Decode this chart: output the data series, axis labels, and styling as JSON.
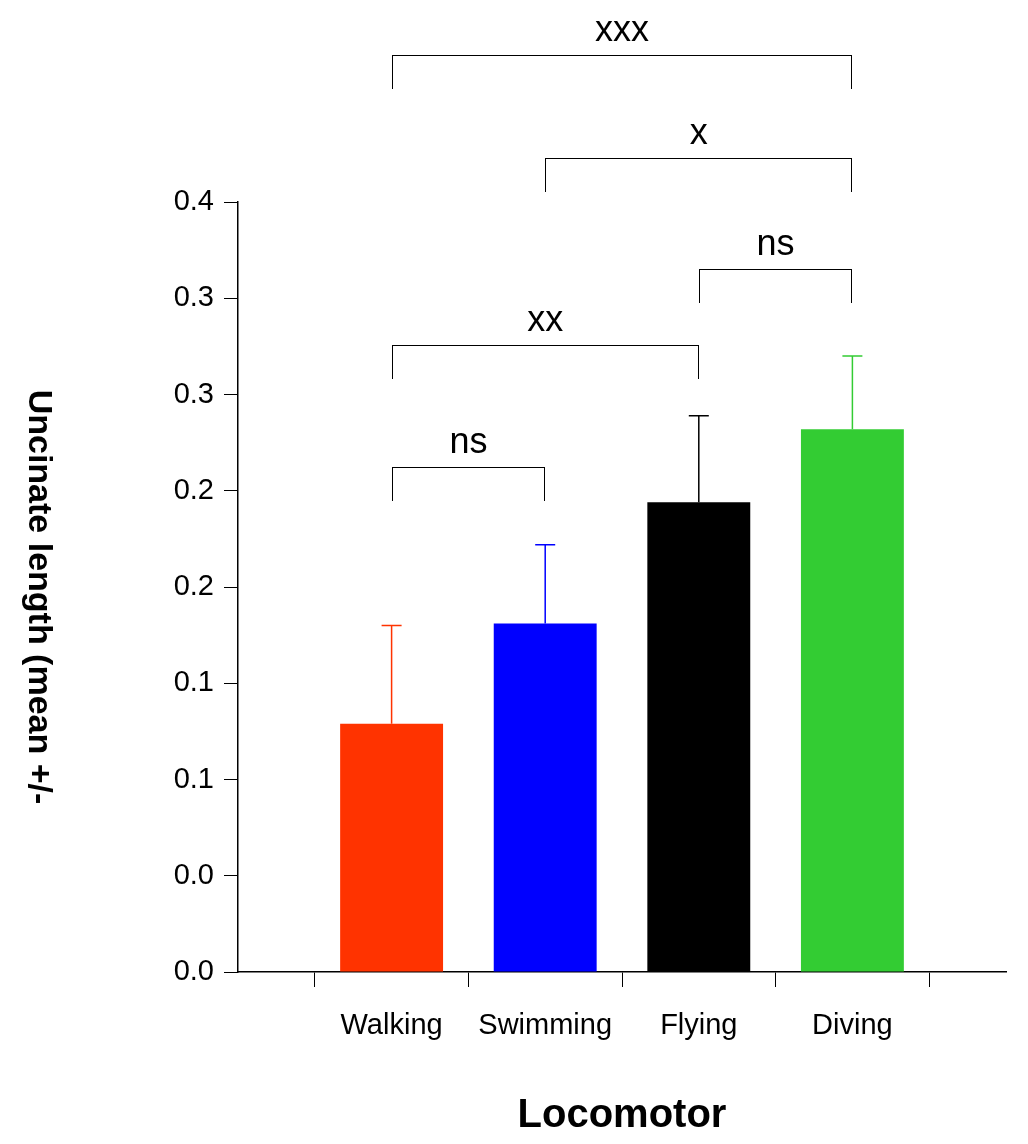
{
  "chart_data": {
    "type": "bar",
    "xlabel": "Locomotor",
    "ylabel": "Uncinate length (mean +/-",
    "categories": [
      "Walking",
      "Swimming",
      "Flying",
      "Diving"
    ],
    "values": [
      0.129,
      0.181,
      0.244,
      0.282
    ],
    "colors": [
      "#ff3300",
      "#0000ff",
      "#000000",
      "#33cc33"
    ],
    "errors": [
      [
        0.129,
        0.18
      ],
      [
        0.181,
        0.222
      ],
      [
        0.244,
        0.289
      ],
      [
        0.282,
        0.32
      ]
    ],
    "ylim": [
      0,
      0.4
    ],
    "yticks": [
      {
        "value": 0,
        "label": "0.0"
      },
      {
        "value": 0.05,
        "label": "0.0"
      },
      {
        "value": 0.1,
        "label": "0.1"
      },
      {
        "value": 0.15,
        "label": "0.1"
      },
      {
        "value": 0.2,
        "label": "0.2"
      },
      {
        "value": 0.25,
        "label": "0.2"
      },
      {
        "value": 0.3,
        "label": "0.3"
      },
      {
        "value": 0.35,
        "label": "0.3"
      },
      {
        "value": 0.4,
        "label": "0.4"
      }
    ],
    "annotations": [
      "xxx",
      "x",
      "ns",
      "xx",
      "ns"
    ]
  }
}
